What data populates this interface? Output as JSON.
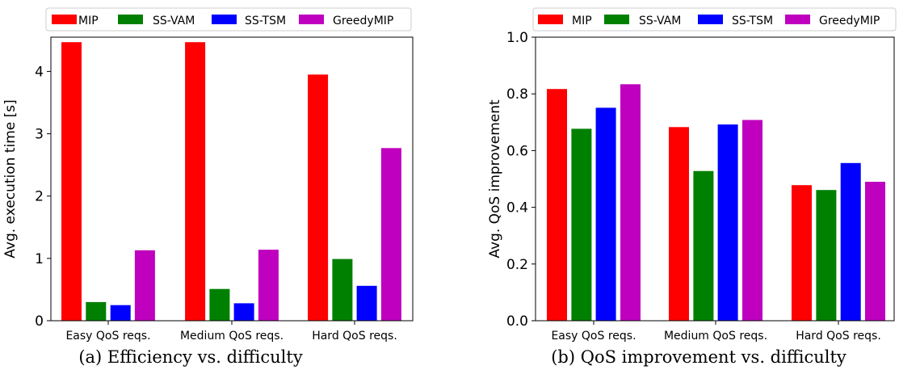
{
  "chart_data": [
    {
      "type": "bar",
      "title": "",
      "xlabel": "",
      "ylabel": "Avg. execution time [s]",
      "ylim": [
        0,
        4.55
      ],
      "yticks": [
        0,
        1,
        2,
        3,
        4
      ],
      "ytick_labels": [
        "0",
        "1",
        "2",
        "3",
        "4"
      ],
      "categories": [
        "Easy QoS reqs.",
        "Medium QoS reqs.",
        "Hard QoS reqs."
      ],
      "series": [
        {
          "name": "MIP",
          "color": "#ff0000",
          "values": [
            4.47,
            4.47,
            3.95
          ]
        },
        {
          "name": "SS-VAM",
          "color": "#008000",
          "values": [
            0.3,
            0.51,
            0.99
          ]
        },
        {
          "name": "SS-TSM",
          "color": "#0000ff",
          "values": [
            0.25,
            0.28,
            0.56
          ]
        },
        {
          "name": "GreedyMIP",
          "color": "#bf00bf",
          "values": [
            1.13,
            1.14,
            2.77
          ]
        }
      ],
      "legend": "top, outside plot",
      "grid": false,
      "caption": "(a) Efficiency vs. difficulty"
    },
    {
      "type": "bar",
      "title": "",
      "xlabel": "",
      "ylabel": "Avg. QoS improvement",
      "ylim": [
        0,
        1.0
      ],
      "yticks": [
        0,
        0.2,
        0.4,
        0.6,
        0.8,
        1.0
      ],
      "ytick_labels": [
        "0.0",
        "0.2",
        "0.4",
        "0.6",
        "0.8",
        "1.0"
      ],
      "categories": [
        "Easy QoS reqs.",
        "Medium QoS reqs.",
        "Hard QoS reqs."
      ],
      "series": [
        {
          "name": "MIP",
          "color": "#ff0000",
          "values": [
            0.817,
            0.683,
            0.478
          ]
        },
        {
          "name": "SS-VAM",
          "color": "#008000",
          "values": [
            0.677,
            0.528,
            0.461
          ]
        },
        {
          "name": "SS-TSM",
          "color": "#0000ff",
          "values": [
            0.751,
            0.692,
            0.556
          ]
        },
        {
          "name": "GreedyMIP",
          "color": "#bf00bf",
          "values": [
            0.834,
            0.708,
            0.49
          ]
        }
      ],
      "legend": "top, outside plot",
      "grid": false,
      "caption": "(b) QoS improvement vs. difficulty"
    }
  ]
}
